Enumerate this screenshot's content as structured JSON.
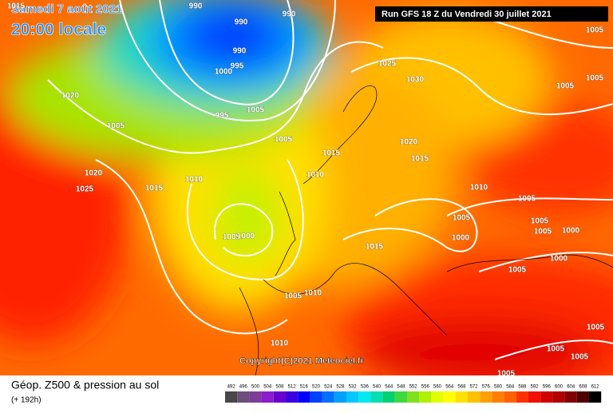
{
  "header": {
    "date": "Samedi 7 août 2021",
    "time": "20:00 locale",
    "run": "Run GFS 18 Z du Vendredi 30 juillet 2021"
  },
  "copyright": "Copyright(C)2021 Meteociel.fr",
  "footer": {
    "title": "Géop. Z500 & pression au sol",
    "subtitle": "(+ 192h)"
  },
  "isobars": {
    "labels": [
      "1015",
      "990",
      "990",
      "990",
      "990",
      "995",
      "1000",
      "1005",
      "995",
      "1020",
      "1005",
      "1005",
      "1025",
      "1030",
      "1005",
      "1005",
      "1005",
      "1015",
      "1020",
      "1015",
      "1010",
      "1010",
      "1020",
      "1025",
      "1015",
      "1010",
      "1005",
      "1005",
      "1005",
      "1005",
      "1000",
      "1000",
      "1005",
      "1000",
      "1015",
      "1000",
      "1005",
      "1005",
      "1010",
      "1010",
      "1005",
      "1005",
      "1005",
      "1005"
    ]
  },
  "scale": {
    "values": [
      492,
      496,
      500,
      504,
      508,
      512,
      516,
      520,
      524,
      528,
      532,
      536,
      540,
      544,
      548,
      552,
      556,
      560,
      564,
      568,
      572,
      576,
      580,
      584,
      588,
      592,
      596,
      600,
      604,
      608,
      612
    ],
    "colors": [
      "#484848",
      "#6b4f7a",
      "#7c3c9c",
      "#8c1ccc",
      "#6a00d0",
      "#3c00e0",
      "#0000ff",
      "#0040ff",
      "#0070ff",
      "#00a0ff",
      "#00c8ff",
      "#00e8f0",
      "#00e0b0",
      "#00d070",
      "#40d840",
      "#80e020",
      "#b0f000",
      "#e0ff00",
      "#ffff00",
      "#ffe000",
      "#ffc000",
      "#ffa000",
      "#ff8000",
      "#ff6000",
      "#ff3000",
      "#f01000",
      "#d00000",
      "#b00000",
      "#800000",
      "#500000",
      "#000000"
    ]
  }
}
